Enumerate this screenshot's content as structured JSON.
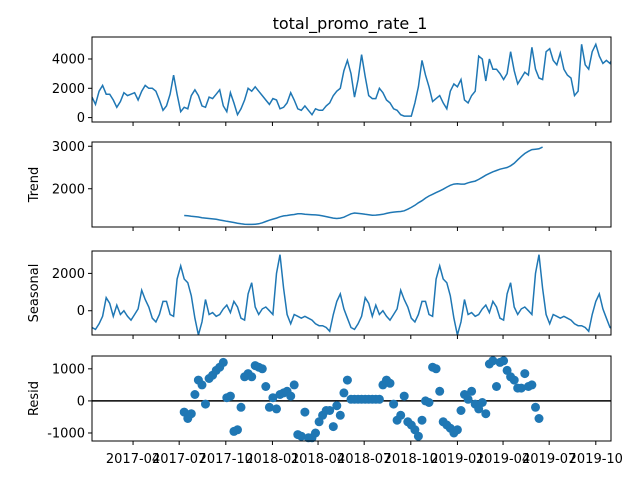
{
  "chart_data": {
    "type": "line",
    "title": "total_promo_rate_1",
    "colors": {
      "line": "#1f77b4",
      "axis": "#000000",
      "zero_line": "#000000"
    },
    "x_axis": {
      "type": "date",
      "range": [
        "2017-01-10",
        "2019-10-31"
      ],
      "tick_labels": [
        "2017-04",
        "2017-07",
        "2017-10",
        "2018-01",
        "2018-04",
        "2018-07",
        "2018-10",
        "2019-01",
        "2019-04",
        "2019-07",
        "2019-10"
      ]
    },
    "panels": [
      {
        "name": "observed",
        "ylabel": "",
        "type": "line",
        "ylim": [
          -300,
          5500
        ],
        "yticks": [
          0,
          2000,
          4000
        ],
        "values": [
          1400,
          900,
          1800,
          2200,
          1600,
          1600,
          1200,
          700,
          1100,
          1700,
          1500,
          1600,
          1700,
          1200,
          1800,
          2200,
          2000,
          2000,
          1800,
          1200,
          500,
          800,
          1600,
          2900,
          1600,
          400,
          700,
          600,
          1500,
          1900,
          1500,
          800,
          700,
          1400,
          1300,
          1600,
          1900,
          800,
          400,
          1700,
          1000,
          200,
          600,
          1200,
          2000,
          1800,
          2100,
          1800,
          1500,
          1200,
          900,
          1300,
          1200,
          600,
          700,
          1000,
          1700,
          1200,
          600,
          500,
          800,
          500,
          200,
          600,
          500,
          500,
          800,
          1000,
          1500,
          1800,
          2000,
          3200,
          3900,
          3000,
          1400,
          2600,
          4300,
          2800,
          1500,
          1300,
          1300,
          2000,
          1700,
          1200,
          1000,
          600,
          500,
          200,
          100,
          100,
          100,
          1000,
          2100,
          3900,
          2900,
          2100,
          1100,
          1300,
          1500,
          1000,
          600,
          1800,
          2300,
          2100,
          2600,
          1200,
          1000,
          1500,
          1800,
          4200,
          4000,
          2500,
          4000,
          3300,
          3300,
          3000,
          2600,
          3000,
          4500,
          3200,
          2300,
          2700,
          3100,
          2900,
          4800,
          3300,
          2700,
          2600,
          4500,
          4700,
          3900,
          3600,
          4400,
          3300,
          2900,
          2700,
          1500,
          1800,
          5000,
          3600,
          3300,
          4500,
          5000,
          4200,
          3700,
          3900,
          3700,
          4200
        ]
      },
      {
        "name": "trend",
        "ylabel": "Trend",
        "type": "line",
        "ylim": [
          1100,
          3100
        ],
        "yticks": [
          2000,
          3000
        ],
        "values_start_index": 26,
        "values": [
          1370,
          1365,
          1355,
          1345,
          1335,
          1320,
          1310,
          1300,
          1290,
          1280,
          1265,
          1250,
          1235,
          1220,
          1205,
          1190,
          1175,
          1165,
          1160,
          1160,
          1165,
          1175,
          1200,
          1230,
          1260,
          1285,
          1310,
          1340,
          1360,
          1370,
          1385,
          1395,
          1410,
          1410,
          1400,
          1395,
          1390,
          1385,
          1375,
          1360,
          1345,
          1325,
          1310,
          1300,
          1310,
          1330,
          1370,
          1410,
          1430,
          1420,
          1410,
          1400,
          1390,
          1375,
          1380,
          1390,
          1400,
          1420,
          1440,
          1450,
          1460,
          1465,
          1480,
          1520,
          1560,
          1610,
          1670,
          1720,
          1780,
          1830,
          1870,
          1910,
          1950,
          1990,
          2040,
          2080,
          2110,
          2120,
          2110,
          2110,
          2140,
          2160,
          2180,
          2220,
          2270,
          2320,
          2360,
          2400,
          2430,
          2460,
          2480,
          2500,
          2540,
          2600,
          2680,
          2760,
          2830,
          2880,
          2920,
          2930,
          2940,
          2980
        ]
      },
      {
        "name": "seasonal",
        "ylabel": "Seasonal",
        "type": "line",
        "ylim": [
          -1300,
          3200
        ],
        "yticks": [
          0,
          2000
        ],
        "season": [
          -900,
          -1000,
          -700,
          -300,
          700,
          400,
          -300,
          300,
          -200,
          0,
          -300,
          -500,
          -200,
          100,
          1100,
          600,
          200,
          -400,
          -600,
          -200,
          500,
          500,
          -200,
          -300,
          1700,
          2400,
          1700,
          1500,
          800,
          -400,
          -1300,
          -600,
          600,
          -200,
          -100,
          -300,
          -200,
          100,
          300,
          -100,
          500,
          200,
          -400,
          -500,
          900,
          1500,
          200,
          -200,
          100,
          200,
          0,
          -200,
          2000,
          3000,
          1200,
          -200,
          -700,
          -200,
          -300,
          -400,
          -300,
          -400,
          -500,
          -700,
          -800,
          -800,
          -900,
          -1100,
          -200,
          500,
          900,
          100,
          -400
        ]
      },
      {
        "name": "resid",
        "ylabel": "Resid",
        "type": "scatter",
        "ylim": [
          -1250,
          1400
        ],
        "yticks": [
          -1000,
          0,
          1000
        ],
        "zero_line": true,
        "points": [
          [
            26,
            -350
          ],
          [
            27,
            -550
          ],
          [
            28,
            -400
          ],
          [
            29,
            200
          ],
          [
            30,
            650
          ],
          [
            31,
            500
          ],
          [
            32,
            -100
          ],
          [
            33,
            700
          ],
          [
            34,
            800
          ],
          [
            35,
            950
          ],
          [
            36,
            1050
          ],
          [
            37,
            1200
          ],
          [
            38,
            100
          ],
          [
            39,
            150
          ],
          [
            40,
            -950
          ],
          [
            41,
            -900
          ],
          [
            42,
            -200
          ],
          [
            43,
            750
          ],
          [
            44,
            850
          ],
          [
            45,
            750
          ],
          [
            46,
            1100
          ],
          [
            47,
            1050
          ],
          [
            48,
            1000
          ],
          [
            49,
            450
          ],
          [
            50,
            -200
          ],
          [
            51,
            100
          ],
          [
            52,
            -250
          ],
          [
            53,
            200
          ],
          [
            54,
            250
          ],
          [
            55,
            300
          ],
          [
            56,
            150
          ],
          [
            57,
            500
          ],
          [
            58,
            -1050
          ],
          [
            59,
            -1100
          ],
          [
            60,
            -350
          ],
          [
            61,
            -1150
          ],
          [
            62,
            -1150
          ],
          [
            63,
            -1000
          ],
          [
            64,
            -650
          ],
          [
            65,
            -450
          ],
          [
            66,
            -300
          ],
          [
            67,
            -300
          ],
          [
            68,
            -800
          ],
          [
            69,
            -150
          ],
          [
            70,
            -450
          ],
          [
            71,
            250
          ],
          [
            72,
            650
          ],
          [
            73,
            50
          ],
          [
            74,
            50
          ],
          [
            75,
            50
          ],
          [
            76,
            50
          ],
          [
            77,
            50
          ],
          [
            78,
            50
          ],
          [
            79,
            50
          ],
          [
            80,
            50
          ],
          [
            81,
            50
          ],
          [
            82,
            500
          ],
          [
            83,
            650
          ],
          [
            84,
            550
          ],
          [
            85,
            -100
          ],
          [
            86,
            -600
          ],
          [
            87,
            -450
          ],
          [
            88,
            150
          ],
          [
            89,
            -650
          ],
          [
            90,
            -750
          ],
          [
            91,
            -900
          ],
          [
            92,
            -1100
          ],
          [
            93,
            -600
          ],
          [
            94,
            0
          ],
          [
            95,
            -50
          ],
          [
            96,
            1050
          ],
          [
            97,
            1000
          ],
          [
            98,
            300
          ],
          [
            99,
            -650
          ],
          [
            100,
            -750
          ],
          [
            101,
            -850
          ],
          [
            102,
            -1000
          ],
          [
            103,
            -900
          ],
          [
            104,
            -300
          ],
          [
            105,
            200
          ],
          [
            106,
            50
          ],
          [
            107,
            300
          ],
          [
            108,
            -100
          ],
          [
            109,
            -250
          ],
          [
            110,
            -50
          ],
          [
            111,
            -400
          ],
          [
            112,
            1150
          ],
          [
            113,
            1250
          ],
          [
            114,
            450
          ],
          [
            115,
            1200
          ],
          [
            116,
            1250
          ],
          [
            117,
            950
          ],
          [
            118,
            750
          ],
          [
            119,
            650
          ],
          [
            120,
            400
          ],
          [
            121,
            400
          ],
          [
            122,
            850
          ],
          [
            123,
            450
          ],
          [
            124,
            500
          ],
          [
            125,
            -200
          ],
          [
            126,
            -550
          ]
        ]
      }
    ]
  }
}
